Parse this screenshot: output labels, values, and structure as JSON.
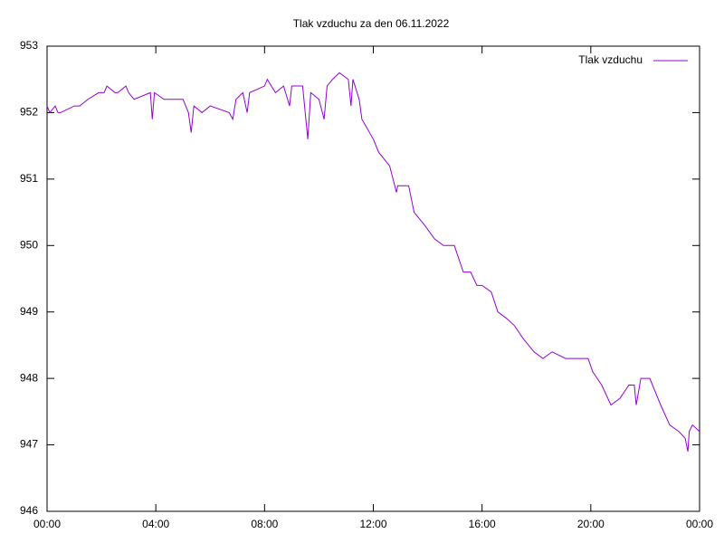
{
  "chart_data": {
    "type": "line",
    "title": "Tlak vzduchu za den 06.11.2022",
    "x": [
      0,
      0.1,
      0.3,
      0.4,
      0.5,
      1.0,
      1.2,
      1.5,
      1.9,
      2.1,
      2.2,
      2.5,
      2.6,
      2.9,
      3.0,
      3.2,
      3.8,
      3.87,
      3.95,
      4.3,
      5.0,
      5.2,
      5.3,
      5.4,
      5.7,
      6.0,
      6.7,
      6.83,
      6.95,
      7.2,
      7.36,
      7.45,
      8.0,
      8.1,
      8.4,
      8.7,
      8.92,
      9.0,
      9.4,
      9.59,
      9.7,
      10.0,
      10.19,
      10.3,
      10.5,
      10.75,
      11.08,
      11.18,
      11.25,
      11.48,
      11.58,
      12.0,
      12.2,
      12.6,
      12.85,
      12.9,
      13.3,
      13.5,
      13.9,
      14.25,
      14.58,
      14.98,
      15.31,
      15.58,
      15.81,
      16.0,
      16.34,
      16.58,
      16.91,
      17.18,
      17.51,
      17.91,
      18.24,
      18.58,
      19.07,
      19.9,
      20.07,
      20.4,
      20.74,
      21.07,
      21.4,
      21.6,
      21.67,
      21.84,
      22.17,
      22.57,
      22.9,
      23.24,
      23.47,
      23.57,
      23.62,
      23.74,
      24.0
    ],
    "series": [
      {
        "name": "Tlak vzduchu",
        "color": "#9400d3",
        "values": [
          952.1,
          952.0,
          952.1,
          952.0,
          952.0,
          952.1,
          952.1,
          952.2,
          952.3,
          952.3,
          952.4,
          952.3,
          952.3,
          952.4,
          952.3,
          952.2,
          952.3,
          951.9,
          952.3,
          952.2,
          952.2,
          952.0,
          951.7,
          952.1,
          952.0,
          952.1,
          952.0,
          951.9,
          952.2,
          952.3,
          952.0,
          952.3,
          952.4,
          952.5,
          952.3,
          952.4,
          952.1,
          952.4,
          952.4,
          951.6,
          952.3,
          952.2,
          951.9,
          952.4,
          952.5,
          952.6,
          952.5,
          952.1,
          952.5,
          952.2,
          951.9,
          951.6,
          951.4,
          951.2,
          950.8,
          950.9,
          950.9,
          950.5,
          950.3,
          950.1,
          950.0,
          950.0,
          949.6,
          949.6,
          949.4,
          949.4,
          949.3,
          949.0,
          948.9,
          948.8,
          948.6,
          948.4,
          948.3,
          948.4,
          948.3,
          948.3,
          948.1,
          947.9,
          947.6,
          947.7,
          947.9,
          947.9,
          947.6,
          948.0,
          948.0,
          947.6,
          947.3,
          947.2,
          947.1,
          946.9,
          947.2,
          947.3,
          947.2
        ]
      }
    ],
    "xlim": [
      0,
      24
    ],
    "xticks": [
      {
        "value": 0,
        "label": "00:00"
      },
      {
        "value": 4,
        "label": "04:00"
      },
      {
        "value": 8,
        "label": "08:00"
      },
      {
        "value": 12,
        "label": "12:00"
      },
      {
        "value": 16,
        "label": "16:00"
      },
      {
        "value": 20,
        "label": "20:00"
      },
      {
        "value": 24,
        "label": "00:00"
      }
    ],
    "ylim": [
      946,
      953
    ],
    "yticks": [
      946,
      947,
      948,
      949,
      950,
      951,
      952,
      953
    ],
    "legend": "top-right"
  }
}
